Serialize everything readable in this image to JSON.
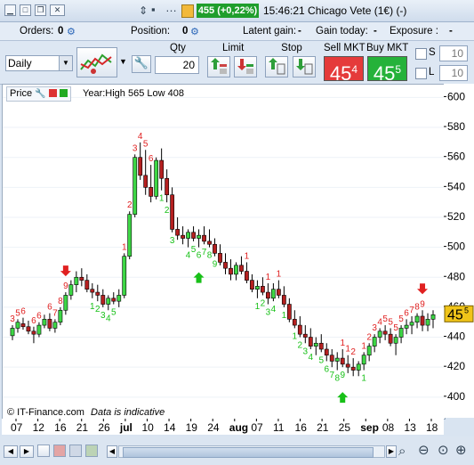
{
  "window": {
    "price_badge": "455 (+0,22%)",
    "title": "15:46:21 Chicago Vete (1€) (-)"
  },
  "info_bar": {
    "orders_label": "Orders:",
    "orders_value": "0",
    "position_label": "Position:",
    "position_value": "0",
    "latent_gain_label": "Latent gain:",
    "latent_gain_value": "-",
    "gain_today_label": "Gain today:",
    "gain_today_value": "-",
    "exposure_label": "Exposure :",
    "exposure_value": "-"
  },
  "toolbar": {
    "period": "Daily",
    "qty_label": "Qty",
    "qty_value": "20",
    "limit_label": "Limit",
    "stop_label": "Stop",
    "sell_label": "Sell MKT",
    "buy_label": "Buy MKT",
    "sell_price_main": "45",
    "sell_price_sup": "4",
    "buy_price_main": "45",
    "buy_price_sup": "5",
    "s_label": "S",
    "s_value": "10",
    "l_label": "L",
    "l_value": "10",
    "sell_color": "#e53a3a",
    "buy_color": "#25b23a"
  },
  "chart_header": {
    "price_label": "Price",
    "range_text": "Year:High 565 Low 408"
  },
  "footer": {
    "copyright": "© IT-Finance.com",
    "note": "Data is indicative"
  },
  "chart_data": {
    "type": "candlestick",
    "ylim": [
      388,
      605
    ],
    "y_ticks": [
      400,
      420,
      440,
      460,
      480,
      500,
      520,
      540,
      560,
      580,
      600
    ],
    "x_tick_labels": [
      "07",
      "12",
      "16",
      "21",
      "26",
      "jul",
      "10",
      "14",
      "19",
      "24",
      "aug",
      "07",
      "11",
      "16",
      "21",
      "25",
      "sep",
      "08",
      "13",
      "18"
    ],
    "last_price_main": "45",
    "last_price_sup": "5",
    "candles": [
      [
        441,
        448,
        438,
        446
      ],
      [
        446,
        452,
        443,
        450
      ],
      [
        449,
        453,
        445,
        447
      ],
      [
        447,
        451,
        442,
        444
      ],
      [
        444,
        447,
        436,
        442
      ],
      [
        442,
        450,
        440,
        448
      ],
      [
        448,
        455,
        446,
        452
      ],
      [
        452,
        456,
        444,
        446
      ],
      [
        446,
        452,
        443,
        450
      ],
      [
        450,
        460,
        448,
        458
      ],
      [
        458,
        470,
        455,
        468
      ],
      [
        468,
        478,
        465,
        475
      ],
      [
        475,
        484,
        470,
        480
      ],
      [
        480,
        486,
        474,
        478
      ],
      [
        478,
        482,
        470,
        472
      ],
      [
        472,
        476,
        466,
        470
      ],
      [
        470,
        475,
        464,
        468
      ],
      [
        468,
        472,
        460,
        462
      ],
      [
        462,
        468,
        458,
        466
      ],
      [
        466,
        470,
        462,
        464
      ],
      [
        464,
        472,
        460,
        468
      ],
      [
        468,
        496,
        466,
        494
      ],
      [
        494,
        524,
        492,
        522
      ],
      [
        522,
        562,
        520,
        560
      ],
      [
        560,
        570,
        545,
        548
      ],
      [
        548,
        565,
        535,
        540
      ],
      [
        540,
        555,
        530,
        534
      ],
      [
        534,
        560,
        532,
        558
      ],
      [
        558,
        566,
        538,
        546
      ],
      [
        546,
        552,
        530,
        535
      ],
      [
        535,
        540,
        510,
        512
      ],
      [
        512,
        520,
        505,
        508
      ],
      [
        508,
        514,
        502,
        506
      ],
      [
        506,
        512,
        500,
        510
      ],
      [
        510,
        514,
        504,
        506
      ],
      [
        506,
        512,
        500,
        508
      ],
      [
        508,
        514,
        502,
        504
      ],
      [
        504,
        512,
        500,
        502
      ],
      [
        502,
        506,
        494,
        496
      ],
      [
        496,
        502,
        488,
        490
      ],
      [
        490,
        496,
        482,
        486
      ],
      [
        486,
        492,
        478,
        482
      ],
      [
        482,
        490,
        478,
        488
      ],
      [
        488,
        494,
        482,
        484
      ],
      [
        484,
        490,
        476,
        478
      ],
      [
        478,
        482,
        470,
        472
      ],
      [
        472,
        478,
        466,
        474
      ],
      [
        474,
        480,
        468,
        470
      ],
      [
        470,
        476,
        462,
        466
      ],
      [
        466,
        476,
        464,
        472
      ],
      [
        472,
        478,
        466,
        468
      ],
      [
        468,
        474,
        460,
        462
      ],
      [
        462,
        466,
        450,
        452
      ],
      [
        452,
        458,
        446,
        448
      ],
      [
        448,
        454,
        440,
        442
      ],
      [
        442,
        448,
        436,
        440
      ],
      [
        440,
        446,
        432,
        434
      ],
      [
        434,
        440,
        428,
        436
      ],
      [
        436,
        442,
        430,
        432
      ],
      [
        432,
        436,
        424,
        428
      ],
      [
        428,
        432,
        420,
        424
      ],
      [
        424,
        430,
        418,
        426
      ],
      [
        426,
        432,
        420,
        422
      ],
      [
        422,
        428,
        416,
        420
      ],
      [
        420,
        426,
        414,
        418
      ],
      [
        418,
        424,
        414,
        422
      ],
      [
        422,
        430,
        418,
        428
      ],
      [
        428,
        436,
        424,
        434
      ],
      [
        434,
        442,
        430,
        440
      ],
      [
        440,
        446,
        436,
        444
      ],
      [
        444,
        448,
        438,
        442
      ],
      [
        442,
        446,
        434,
        436
      ],
      [
        436,
        442,
        428,
        440
      ],
      [
        440,
        448,
        436,
        446
      ],
      [
        446,
        452,
        442,
        448
      ],
      [
        448,
        454,
        442,
        450
      ],
      [
        450,
        456,
        446,
        454
      ],
      [
        454,
        458,
        444,
        448
      ],
      [
        448,
        456,
        444,
        452
      ],
      [
        452,
        458,
        446,
        455
      ]
    ],
    "td_labels": [
      {
        "i": 0,
        "text": "3",
        "color": "red",
        "pos": "above"
      },
      {
        "i": 1,
        "text": "5",
        "color": "red",
        "pos": "above"
      },
      {
        "i": 2,
        "text": "6",
        "color": "red",
        "pos": "above"
      },
      {
        "i": 4,
        "text": "6",
        "color": "red",
        "pos": "above"
      },
      {
        "i": 5,
        "text": "6",
        "color": "red",
        "pos": "above"
      },
      {
        "i": 7,
        "text": "6",
        "color": "red",
        "pos": "above"
      },
      {
        "i": 8,
        "text": "7",
        "color": "red",
        "pos": "above"
      },
      {
        "i": 9,
        "text": "8",
        "color": "red",
        "pos": "above"
      },
      {
        "i": 10,
        "text": "9",
        "color": "red",
        "pos": "above"
      },
      {
        "i": 21,
        "text": "1",
        "color": "red",
        "pos": "above"
      },
      {
        "i": 22,
        "text": "2",
        "color": "red",
        "pos": "above"
      },
      {
        "i": 23,
        "text": "3",
        "color": "red",
        "pos": "above"
      },
      {
        "i": 24,
        "text": "4",
        "color": "red",
        "pos": "above"
      },
      {
        "i": 25,
        "text": "5",
        "color": "red",
        "pos": "above"
      },
      {
        "i": 26,
        "text": "6",
        "color": "red",
        "pos": "above"
      },
      {
        "i": 15,
        "text": "1",
        "color": "green",
        "pos": "below"
      },
      {
        "i": 16,
        "text": "2",
        "color": "green",
        "pos": "below"
      },
      {
        "i": 17,
        "text": "3",
        "color": "green",
        "pos": "below"
      },
      {
        "i": 18,
        "text": "4",
        "color": "green",
        "pos": "below"
      },
      {
        "i": 19,
        "text": "5",
        "color": "green",
        "pos": "below"
      },
      {
        "i": 28,
        "text": "1",
        "color": "green",
        "pos": "below"
      },
      {
        "i": 29,
        "text": "2",
        "color": "green",
        "pos": "below"
      },
      {
        "i": 30,
        "text": "3",
        "color": "green",
        "pos": "below"
      },
      {
        "i": 33,
        "text": "4",
        "color": "green",
        "pos": "below"
      },
      {
        "i": 34,
        "text": "5",
        "color": "green",
        "pos": "below"
      },
      {
        "i": 35,
        "text": "6",
        "color": "green",
        "pos": "below"
      },
      {
        "i": 36,
        "text": "7",
        "color": "green",
        "pos": "below"
      },
      {
        "i": 37,
        "text": "8",
        "color": "green",
        "pos": "below"
      },
      {
        "i": 38,
        "text": "9",
        "color": "green",
        "pos": "below"
      },
      {
        "i": 44,
        "text": "1",
        "color": "red",
        "pos": "above"
      },
      {
        "i": 48,
        "text": "1",
        "color": "red",
        "pos": "above"
      },
      {
        "i": 50,
        "text": "1",
        "color": "red",
        "pos": "above"
      },
      {
        "i": 46,
        "text": "1",
        "color": "green",
        "pos": "below"
      },
      {
        "i": 47,
        "text": "2",
        "color": "green",
        "pos": "below"
      },
      {
        "i": 48,
        "text": "3",
        "color": "green",
        "pos": "below"
      },
      {
        "i": 49,
        "text": "4",
        "color": "green",
        "pos": "below"
      },
      {
        "i": 51,
        "text": "1",
        "color": "green",
        "pos": "below"
      },
      {
        "i": 53,
        "text": "1",
        "color": "green",
        "pos": "below"
      },
      {
        "i": 54,
        "text": "2",
        "color": "green",
        "pos": "below"
      },
      {
        "i": 55,
        "text": "3",
        "color": "green",
        "pos": "below"
      },
      {
        "i": 56,
        "text": "4",
        "color": "green",
        "pos": "below"
      },
      {
        "i": 58,
        "text": "5",
        "color": "green",
        "pos": "below"
      },
      {
        "i": 59,
        "text": "6",
        "color": "green",
        "pos": "below"
      },
      {
        "i": 60,
        "text": "7",
        "color": "green",
        "pos": "below"
      },
      {
        "i": 61,
        "text": "8",
        "color": "green",
        "pos": "below"
      },
      {
        "i": 62,
        "text": "9",
        "color": "green",
        "pos": "below"
      },
      {
        "i": 66,
        "text": "1",
        "color": "green",
        "pos": "below"
      },
      {
        "i": 62,
        "text": "1",
        "color": "red",
        "pos": "above"
      },
      {
        "i": 63,
        "text": "1",
        "color": "red",
        "pos": "above"
      },
      {
        "i": 64,
        "text": "2",
        "color": "red",
        "pos": "above"
      },
      {
        "i": 66,
        "text": "1",
        "color": "red",
        "pos": "above"
      },
      {
        "i": 67,
        "text": "2",
        "color": "red",
        "pos": "above"
      },
      {
        "i": 68,
        "text": "3",
        "color": "red",
        "pos": "above"
      },
      {
        "i": 69,
        "text": "4",
        "color": "red",
        "pos": "above"
      },
      {
        "i": 70,
        "text": "5",
        "color": "red",
        "pos": "above"
      },
      {
        "i": 71,
        "text": "5",
        "color": "red",
        "pos": "above"
      },
      {
        "i": 72,
        "text": "5",
        "color": "red",
        "pos": "above"
      },
      {
        "i": 73,
        "text": "5",
        "color": "red",
        "pos": "above"
      },
      {
        "i": 74,
        "text": "6",
        "color": "red",
        "pos": "above"
      },
      {
        "i": 75,
        "text": "7",
        "color": "red",
        "pos": "above"
      },
      {
        "i": 76,
        "text": "8",
        "color": "red",
        "pos": "above"
      },
      {
        "i": 77,
        "text": "9",
        "color": "red",
        "pos": "above"
      }
    ],
    "arrows": [
      {
        "i": 10,
        "dir": "down",
        "color": "red"
      },
      {
        "i": 35,
        "dir": "up",
        "color": "green"
      },
      {
        "i": 62,
        "dir": "up",
        "color": "green"
      },
      {
        "i": 77,
        "dir": "down",
        "color": "red"
      }
    ]
  }
}
